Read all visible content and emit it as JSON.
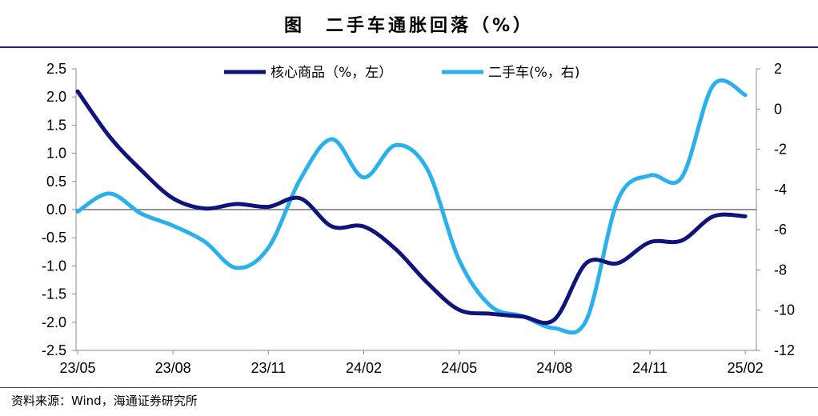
{
  "title": "图　二手车通胀回落（%）",
  "source": "资料来源：Wind，海通证券研究所",
  "chart_data": {
    "type": "line",
    "x": [
      "23/05",
      "23/06",
      "23/07",
      "23/08",
      "23/09",
      "23/10",
      "23/11",
      "23/12",
      "24/01",
      "24/02",
      "24/03",
      "24/04",
      "24/05",
      "24/06",
      "24/07",
      "24/08",
      "24/09",
      "24/10",
      "24/11",
      "24/12",
      "25/01",
      "25/02"
    ],
    "x_tick_labels": [
      "23/05",
      "23/08",
      "23/11",
      "24/02",
      "24/05",
      "24/08",
      "24/11",
      "25/02"
    ],
    "y_left": {
      "lim": [
        -2.5,
        2.5
      ],
      "ticks": [
        "2.5",
        "2.0",
        "1.5",
        "1.0",
        "0.5",
        "0.0",
        "-0.5",
        "-1.0",
        "-1.5",
        "-2.0",
        "-2.5"
      ]
    },
    "y_right": {
      "lim": [
        -12,
        2
      ],
      "ticks": [
        "2",
        "0",
        "-2",
        "-4",
        "-6",
        "-8",
        "-10",
        "-12"
      ]
    },
    "grid": false,
    "legend_position": "top",
    "series": [
      {
        "name": "核心商品（%，左）",
        "axis": "left",
        "color": "#10137a",
        "values": [
          2.1,
          1.3,
          0.7,
          0.2,
          0.02,
          0.1,
          0.05,
          0.2,
          -0.3,
          -0.3,
          -0.7,
          -1.3,
          -1.78,
          -1.85,
          -1.9,
          -1.95,
          -0.95,
          -0.95,
          -0.58,
          -0.55,
          -0.12,
          -0.12
        ]
      },
      {
        "name": "二手车(%，右)",
        "axis": "right",
        "color": "#2ab0ea",
        "values": [
          -5.1,
          -4.2,
          -5.2,
          -5.8,
          -6.6,
          -7.9,
          -6.9,
          -3.5,
          -1.5,
          -3.4,
          -1.8,
          -3.0,
          -7.5,
          -9.8,
          -10.3,
          -10.9,
          -10.5,
          -4.5,
          -3.3,
          -3.4,
          1.2,
          0.7
        ]
      }
    ]
  }
}
